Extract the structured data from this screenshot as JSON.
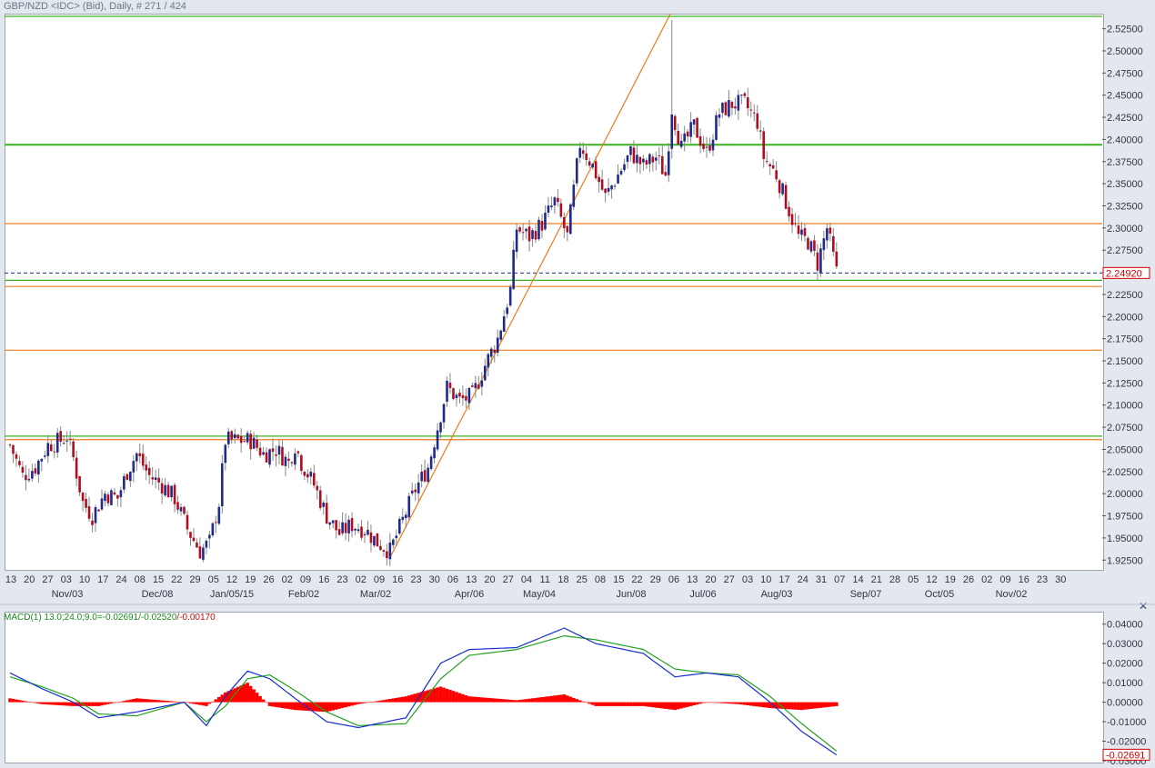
{
  "title": "GBP/NZD <IDC> (Bid), Daily, # 271 / 424",
  "macd_legend": {
    "prefix": "MACD(1) 13.0;24.0;9.0=",
    "macd_value": "-0.02691",
    "signal_value": "/-0.02520",
    "hist_value": "/-0.00170"
  },
  "close_icon": "close-x-icon",
  "colors": {
    "bull_candle": "#1f2a8a",
    "bear_candle": "#b00d1f",
    "green_line": "#38b01f",
    "orange_line": "#f07c1a",
    "macd_line": "#1a2ed0",
    "signal_line": "#22a020",
    "histogram": "#ff0000",
    "current_price_line": "#1a2a8a"
  },
  "chart_data": [
    {
      "type": "candlestick",
      "title": "GBP/NZD <IDC> (Bid), Daily",
      "ylim": [
        1.915,
        2.54
      ],
      "y_ticks": [
        "2.52500",
        "2.50000",
        "2.47500",
        "2.45000",
        "2.42500",
        "2.40000",
        "2.37500",
        "2.35000",
        "2.32500",
        "2.30000",
        "2.27500",
        "2.25000",
        "2.22500",
        "2.20000",
        "2.17500",
        "2.15000",
        "2.12500",
        "2.10000",
        "2.07500",
        "2.05000",
        "2.02500",
        "2.00000",
        "1.97500",
        "1.95000",
        "1.92500"
      ],
      "x_tick_labels": [
        "13",
        "20",
        "27",
        "03",
        "10",
        "17",
        "24",
        "08",
        "15",
        "22",
        "29",
        "05",
        "12",
        "19",
        "26",
        "02",
        "09",
        "16",
        "23",
        "02",
        "09",
        "16",
        "23",
        "30",
        "06",
        "13",
        "20",
        "27",
        "04",
        "11",
        "18",
        "25",
        "08",
        "15",
        "22",
        "29",
        "06",
        "13",
        "20",
        "27",
        "03",
        "10",
        "17",
        "24",
        "31",
        "07",
        "14",
        "21",
        "28",
        "05",
        "12",
        "19",
        "26",
        "02",
        "09",
        "16",
        "23",
        "30"
      ],
      "x_month_labels": [
        "Nov/03",
        "Dec/08",
        "Jan/05/15",
        "Feb/02",
        "Mar/02",
        "Apr/06",
        "May/04",
        "Jun/08",
        "Jul/06",
        "Aug/03",
        "Sep/07",
        "Oct/05",
        "Nov/02"
      ],
      "current_price": "2.24920",
      "current_price_value": 2.2492,
      "horizontal_lines": [
        {
          "value": 2.539,
          "color": "green"
        },
        {
          "value": 2.394,
          "color": "green"
        },
        {
          "value": 2.305,
          "color": "orange"
        },
        {
          "value": 2.234,
          "color": "orange"
        },
        {
          "value": 2.241,
          "color": "green"
        },
        {
          "value": 2.162,
          "color": "orange"
        },
        {
          "value": 2.065,
          "color": "green"
        },
        {
          "value": 2.061,
          "color": "orange"
        }
      ],
      "trend_line": {
        "from": {
          "bar": 120,
          "value": 1.928
        },
        "to": {
          "bar": 209,
          "value": 2.545
        }
      },
      "close_path": [
        [
          0,
          2.055
        ],
        [
          4,
          2.02
        ],
        [
          8,
          2.03
        ],
        [
          12,
          2.055
        ],
        [
          16,
          2.06
        ],
        [
          18,
          2.065
        ],
        [
          20,
          2.04
        ],
        [
          23,
          1.99
        ],
        [
          26,
          1.975
        ],
        [
          30,
          2.0
        ],
        [
          34,
          1.995
        ],
        [
          37,
          2.025
        ],
        [
          40,
          2.045
        ],
        [
          44,
          2.02
        ],
        [
          48,
          2.01
        ],
        [
          52,
          1.995
        ],
        [
          56,
          1.96
        ],
        [
          60,
          1.935
        ],
        [
          63,
          1.945
        ],
        [
          66,
          1.99
        ],
        [
          68,
          2.06
        ],
        [
          72,
          2.06
        ],
        [
          76,
          2.06
        ],
        [
          80,
          2.045
        ],
        [
          84,
          2.05
        ],
        [
          88,
          2.035
        ],
        [
          90,
          2.055
        ],
        [
          92,
          2.035
        ],
        [
          96,
          2.01
        ],
        [
          100,
          1.975
        ],
        [
          104,
          1.955
        ],
        [
          108,
          1.965
        ],
        [
          112,
          1.96
        ],
        [
          116,
          1.945
        ],
        [
          120,
          1.935
        ],
        [
          124,
          1.97
        ],
        [
          128,
          2.005
        ],
        [
          132,
          2.03
        ],
        [
          135,
          2.075
        ],
        [
          138,
          2.12
        ],
        [
          142,
          2.105
        ],
        [
          146,
          2.11
        ],
        [
          150,
          2.145
        ],
        [
          154,
          2.175
        ],
        [
          158,
          2.23
        ],
        [
          160,
          2.3
        ],
        [
          164,
          2.29
        ],
        [
          168,
          2.305
        ],
        [
          172,
          2.33
        ],
        [
          176,
          2.29
        ],
        [
          180,
          2.395
        ],
        [
          184,
          2.37
        ],
        [
          188,
          2.335
        ],
        [
          192,
          2.36
        ],
        [
          196,
          2.385
        ],
        [
          200,
          2.37
        ],
        [
          204,
          2.38
        ],
        [
          207,
          2.36
        ],
        [
          209,
          2.435
        ],
        [
          212,
          2.39
        ],
        [
          216,
          2.415
        ],
        [
          220,
          2.385
        ],
        [
          224,
          2.43
        ],
        [
          228,
          2.44
        ],
        [
          232,
          2.44
        ],
        [
          236,
          2.42
        ],
        [
          238,
          2.38
        ],
        [
          242,
          2.36
        ],
        [
          246,
          2.32
        ],
        [
          249,
          2.29
        ],
        [
          252,
          2.285
        ],
        [
          255,
          2.26
        ],
        [
          258,
          2.3
        ],
        [
          261,
          2.25
        ]
      ],
      "candle_count": 262
    },
    {
      "type": "line",
      "title": "MACD(1) 13.0;24.0;9.0",
      "ylim": [
        -0.03,
        0.045
      ],
      "y_ticks": [
        "0.04000",
        "0.03000",
        "0.02000",
        "0.01000",
        "0.00000",
        "-0.01000",
        "-0.02000",
        "-0.03000"
      ],
      "current_value": "-0.02691",
      "series": [
        {
          "name": "MACD",
          "points": [
            [
              0,
              0.015
            ],
            [
              10,
              0.007
            ],
            [
              20,
              0.0
            ],
            [
              28,
              -0.008
            ],
            [
              40,
              -0.005
            ],
            [
              55,
              0.0
            ],
            [
              62,
              -0.012
            ],
            [
              68,
              0.003
            ],
            [
              75,
              0.016
            ],
            [
              82,
              0.012
            ],
            [
              90,
              0.002
            ],
            [
              100,
              -0.01
            ],
            [
              110,
              -0.013
            ],
            [
              125,
              -0.008
            ],
            [
              136,
              0.02
            ],
            [
              145,
              0.027
            ],
            [
              160,
              0.028
            ],
            [
              175,
              0.038
            ],
            [
              185,
              0.03
            ],
            [
              200,
              0.025
            ],
            [
              210,
              0.013
            ],
            [
              220,
              0.015
            ],
            [
              230,
              0.013
            ],
            [
              240,
              0.0
            ],
            [
              250,
              -0.015
            ],
            [
              261,
              -0.027
            ]
          ]
        },
        {
          "name": "Signal",
          "points": [
            [
              0,
              0.013
            ],
            [
              10,
              0.008
            ],
            [
              20,
              0.002
            ],
            [
              28,
              -0.006
            ],
            [
              40,
              -0.007
            ],
            [
              55,
              0.0
            ],
            [
              62,
              -0.01
            ],
            [
              68,
              -0.002
            ],
            [
              75,
              0.012
            ],
            [
              82,
              0.014
            ],
            [
              90,
              0.006
            ],
            [
              100,
              -0.005
            ],
            [
              110,
              -0.012
            ],
            [
              125,
              -0.011
            ],
            [
              136,
              0.012
            ],
            [
              145,
              0.024
            ],
            [
              160,
              0.027
            ],
            [
              175,
              0.034
            ],
            [
              185,
              0.032
            ],
            [
              200,
              0.027
            ],
            [
              210,
              0.017
            ],
            [
              220,
              0.015
            ],
            [
              230,
              0.014
            ],
            [
              240,
              0.003
            ],
            [
              250,
              -0.011
            ],
            [
              261,
              -0.025
            ]
          ]
        }
      ],
      "histogram": [
        [
          0,
          0.002
        ],
        [
          10,
          -0.001
        ],
        [
          20,
          -0.002
        ],
        [
          28,
          -0.002
        ],
        [
          40,
          0.002
        ],
        [
          55,
          0.0
        ],
        [
          62,
          -0.002
        ],
        [
          68,
          0.005
        ],
        [
          75,
          0.01
        ],
        [
          82,
          -0.002
        ],
        [
          90,
          -0.004
        ],
        [
          100,
          -0.005
        ],
        [
          110,
          -0.001
        ],
        [
          125,
          0.003
        ],
        [
          136,
          0.008
        ],
        [
          145,
          0.003
        ],
        [
          160,
          0.001
        ],
        [
          175,
          0.004
        ],
        [
          185,
          -0.002
        ],
        [
          200,
          -0.002
        ],
        [
          210,
          -0.004
        ],
        [
          220,
          0.0
        ],
        [
          230,
          -0.001
        ],
        [
          240,
          -0.003
        ],
        [
          250,
          -0.004
        ],
        [
          261,
          -0.002
        ]
      ]
    }
  ]
}
